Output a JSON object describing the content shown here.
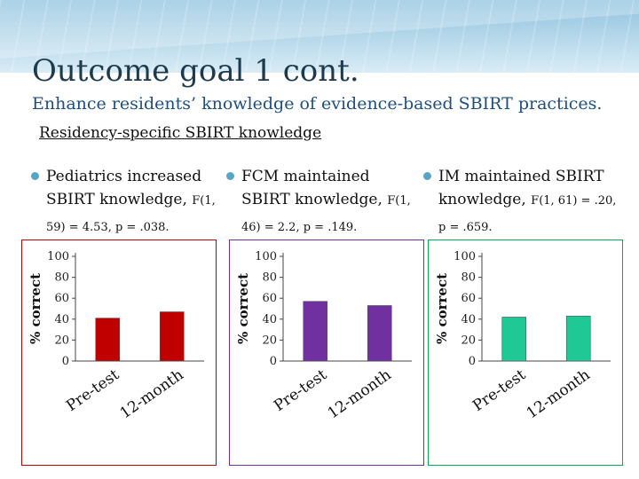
{
  "slide": {
    "title": "Outcome goal 1 cont.",
    "subtitle": "Enhance residents’ knowledge of evidence-based SBIRT practices.",
    "section": "Residency-specific SBIRT knowledge"
  },
  "bullets": [
    {
      "line1": "Pediatrics increased",
      "line2": "SBIRT knowledge,",
      "stat2": "F(1,",
      "line3": "59) = 4.53, p = .038."
    },
    {
      "line1": "FCM maintained",
      "line2": "SBIRT knowledge,",
      "stat2": "F(1,",
      "line3": "46) = 2.2, p = .149."
    },
    {
      "line1": "IM maintained SBIRT",
      "line2": "knowledge,",
      "stat2": "F(1, 61) = .20,",
      "line3": "p = .659."
    }
  ],
  "chart_data": [
    {
      "type": "bar",
      "categories": [
        "Pre-test",
        "12-month"
      ],
      "values": [
        41,
        47
      ],
      "ylabel": "% correct",
      "ylim": [
        0,
        100
      ],
      "yticks": [
        "0",
        "20",
        "40",
        "60",
        "80",
        "100"
      ],
      "bar_color": "#c00000",
      "frame_color": "#c00000"
    },
    {
      "type": "bar",
      "categories": [
        "Pre-test",
        "12-month"
      ],
      "values": [
        57,
        53
      ],
      "ylabel": "% correct",
      "ylim": [
        0,
        100
      ],
      "yticks": [
        "0",
        "20",
        "40",
        "60",
        "80",
        "100"
      ],
      "bar_color": "#7030a0",
      "frame_color": "#7030a0"
    },
    {
      "type": "bar",
      "categories": [
        "Pre-test",
        "12-month"
      ],
      "values": [
        42,
        43
      ],
      "ylabel": "% correct",
      "ylim": [
        0,
        100
      ],
      "yticks": [
        "0",
        "20",
        "40",
        "60",
        "80",
        "100"
      ],
      "bar_color": "#1fc895",
      "frame_color": "#00b050"
    }
  ]
}
